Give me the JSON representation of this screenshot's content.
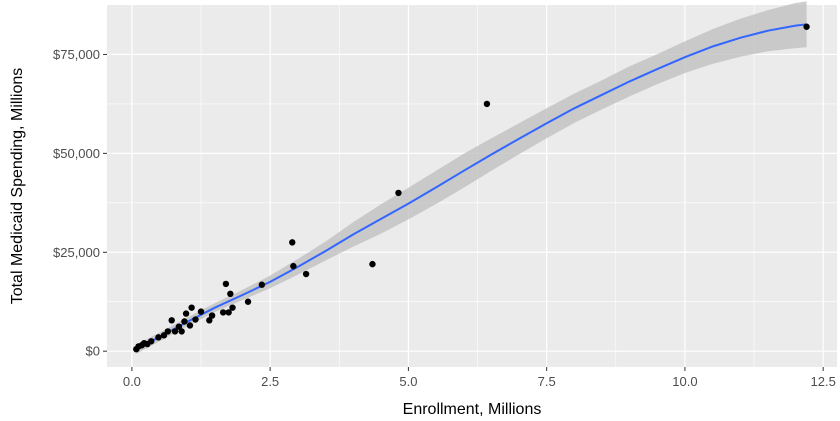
{
  "chart_data": {
    "type": "scatter",
    "title": "",
    "xlabel": "Enrollment, Millions",
    "ylabel": "Total Medicaid Spending, Millions",
    "xlim": [
      -0.45,
      12.75
    ],
    "ylim": [
      -4000,
      87500
    ],
    "x_ticks": [
      0.0,
      2.5,
      5.0,
      7.5,
      10.0,
      12.5
    ],
    "x_tick_labels": [
      "0.0",
      "2.5",
      "5.0",
      "7.5",
      "10.0",
      "12.5"
    ],
    "y_ticks": [
      0,
      25000,
      50000,
      75000
    ],
    "y_tick_labels": [
      "$0",
      "$25,000",
      "$50,000",
      "$75,000"
    ],
    "x_minor_ticks": [
      1.25,
      3.75,
      6.25,
      8.75,
      11.25
    ],
    "y_minor_ticks": [
      12500,
      37500,
      62500
    ],
    "grid": true,
    "legend": "none",
    "colors": {
      "panel_background": "#ebebeb",
      "grid": "#ffffff",
      "points": "#000000",
      "smooth_line": "#3366ff",
      "confidence_band": "#bdbdbd"
    },
    "points": [
      {
        "x": 0.08,
        "y": 500
      },
      {
        "x": 0.12,
        "y": 1200
      },
      {
        "x": 0.18,
        "y": 1500
      },
      {
        "x": 0.22,
        "y": 2000
      },
      {
        "x": 0.28,
        "y": 1800
      },
      {
        "x": 0.35,
        "y": 2500
      },
      {
        "x": 0.48,
        "y": 3500
      },
      {
        "x": 0.58,
        "y": 4000
      },
      {
        "x": 0.65,
        "y": 5000
      },
      {
        "x": 0.72,
        "y": 7800
      },
      {
        "x": 0.78,
        "y": 5000
      },
      {
        "x": 0.85,
        "y": 6200
      },
      {
        "x": 0.9,
        "y": 5000
      },
      {
        "x": 0.95,
        "y": 7500
      },
      {
        "x": 0.98,
        "y": 9500
      },
      {
        "x": 1.05,
        "y": 6500
      },
      {
        "x": 1.08,
        "y": 11000
      },
      {
        "x": 1.15,
        "y": 8000
      },
      {
        "x": 1.25,
        "y": 10000
      },
      {
        "x": 1.4,
        "y": 7800
      },
      {
        "x": 1.45,
        "y": 9000
      },
      {
        "x": 1.65,
        "y": 9800
      },
      {
        "x": 1.7,
        "y": 17000
      },
      {
        "x": 1.75,
        "y": 9800
      },
      {
        "x": 1.78,
        "y": 14500
      },
      {
        "x": 1.82,
        "y": 11000
      },
      {
        "x": 2.1,
        "y": 12500
      },
      {
        "x": 2.35,
        "y": 16800
      },
      {
        "x": 2.9,
        "y": 27500
      },
      {
        "x": 2.92,
        "y": 21500
      },
      {
        "x": 3.15,
        "y": 19500
      },
      {
        "x": 4.35,
        "y": 22000
      },
      {
        "x": 4.82,
        "y": 40000
      },
      {
        "x": 6.42,
        "y": 62500
      },
      {
        "x": 12.2,
        "y": 82000
      }
    ],
    "smooth_fit": {
      "x": [
        0.08,
        0.5,
        1.0,
        1.5,
        2.0,
        2.5,
        3.0,
        3.5,
        4.0,
        4.5,
        5.0,
        5.5,
        6.0,
        6.5,
        7.0,
        7.5,
        8.0,
        8.5,
        9.0,
        9.5,
        10.0,
        10.5,
        11.0,
        11.5,
        12.0,
        12.2
      ],
      "y": [
        500,
        3600,
        7400,
        11000,
        14200,
        17500,
        21300,
        25300,
        29500,
        33400,
        37300,
        41400,
        45600,
        49700,
        53700,
        57600,
        61400,
        64800,
        68200,
        71300,
        74300,
        77000,
        79200,
        81000,
        82300,
        82600
      ],
      "lower": [
        -700,
        2500,
        6300,
        9900,
        12900,
        15900,
        19300,
        22900,
        26400,
        29700,
        33300,
        37200,
        41300,
        45600,
        49800,
        53800,
        57700,
        61100,
        64400,
        67500,
        70300,
        72600,
        74400,
        75800,
        76600,
        76800
      ],
      "upper": [
        1700,
        4700,
        8500,
        12100,
        15500,
        19100,
        23300,
        27700,
        32600,
        37100,
        41300,
        45600,
        49900,
        53800,
        57600,
        61400,
        65100,
        68500,
        72000,
        75100,
        78300,
        81400,
        84000,
        86200,
        88000,
        88400
      ]
    }
  }
}
